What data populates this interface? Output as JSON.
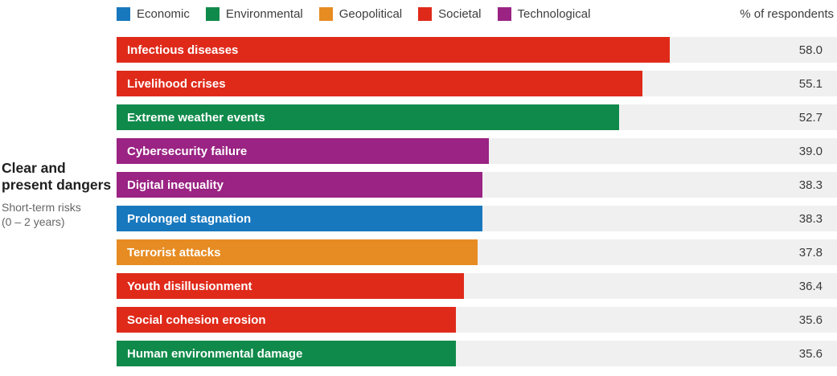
{
  "sidebar": {
    "title": "Clear and present dangers",
    "subtitle_line1": "Short-term risks",
    "subtitle_line2": "(0 – 2 years)"
  },
  "chart_data": {
    "type": "bar",
    "orientation": "horizontal",
    "title": "Clear and present dangers",
    "subtitle": "Short-term risks (0 – 2 years)",
    "value_axis_label": "% of respondents",
    "xlim": [
      0,
      75.5
    ],
    "grid": false,
    "legend_position": "top",
    "track_color": "#f0f0f0",
    "legend": [
      {
        "label": "Economic",
        "color": "#1878be"
      },
      {
        "label": "Environmental",
        "color": "#0f8a4a"
      },
      {
        "label": "Geopolitical",
        "color": "#e78c23"
      },
      {
        "label": "Societal",
        "color": "#df2a1a"
      },
      {
        "label": "Technological",
        "color": "#9a2383"
      }
    ],
    "bars": [
      {
        "label": "Infectious diseases",
        "value": 58.0,
        "category": "Societal"
      },
      {
        "label": "Livelihood crises",
        "value": 55.1,
        "category": "Societal"
      },
      {
        "label": "Extreme weather events",
        "value": 52.7,
        "category": "Environmental"
      },
      {
        "label": "Cybersecurity failure",
        "value": 39.0,
        "category": "Technological"
      },
      {
        "label": "Digital inequality",
        "value": 38.3,
        "category": "Technological"
      },
      {
        "label": "Prolonged stagnation",
        "value": 38.3,
        "category": "Economic"
      },
      {
        "label": "Terrorist attacks",
        "value": 37.8,
        "category": "Geopolitical"
      },
      {
        "label": "Youth disillusionment",
        "value": 36.4,
        "category": "Societal"
      },
      {
        "label": "Social cohesion erosion",
        "value": 35.6,
        "category": "Societal"
      },
      {
        "label": "Human environmental damage",
        "value": 35.6,
        "category": "Environmental"
      }
    ]
  }
}
